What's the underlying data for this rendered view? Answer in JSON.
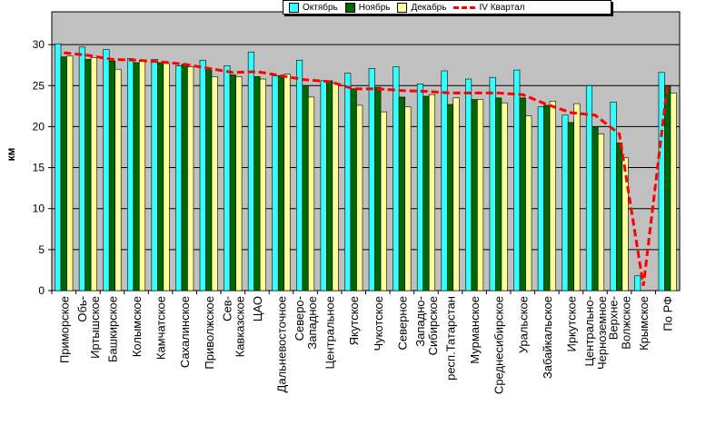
{
  "chart_data": {
    "type": "bar",
    "title": "",
    "xlabel": "",
    "ylabel": "км",
    "ylim": [
      0,
      34
    ],
    "yticks": [
      0,
      5,
      10,
      15,
      20,
      25,
      30
    ],
    "grid": true,
    "legend_position": "top-right",
    "categories": [
      "Приморское",
      "Обь-Иртышское",
      "Башкирское",
      "Колымское",
      "Камчатское",
      "Сахалинское",
      "Приволжское",
      "Сев-Кавказское",
      "ЦАО",
      "Дальневосточное",
      "Северо-Западное",
      "Центральное",
      "Якутское",
      "Чукотское",
      "Северное",
      "Западно-Сибирское",
      "респ.Татарстан",
      "Мурманское",
      "Среднесибирское",
      "Уральское",
      "Забайкальское",
      "Иркутское",
      "Центрально-Черноземное",
      "Верхне-Волжское",
      "Крымское",
      "По РФ"
    ],
    "series": [
      {
        "name": "Октябрь",
        "type": "bar",
        "color": "#33ffff",
        "values": [
          30.1,
          29.7,
          29.4,
          28.3,
          28.2,
          27.4,
          28.1,
          27.4,
          29.1,
          26.2,
          28.1,
          25.6,
          26.5,
          27.1,
          27.3,
          25.2,
          26.8,
          25.8,
          26.0,
          26.9,
          22.4,
          21.4,
          25.0,
          23.0,
          1.8,
          26.6
        ]
      },
      {
        "name": "Ноябрь",
        "type": "bar",
        "color": "#006600",
        "values": [
          28.5,
          28.2,
          28.0,
          27.8,
          27.8,
          27.6,
          27.0,
          26.3,
          26.1,
          26.2,
          25.0,
          25.6,
          24.6,
          24.8,
          23.6,
          23.7,
          22.7,
          23.3,
          23.5,
          23.5,
          22.6,
          20.5,
          20.0,
          18.0,
          0.0,
          25.0
        ]
      },
      {
        "name": "Декабрь",
        "type": "bar",
        "color": "#ffff99",
        "values": [
          28.6,
          28.4,
          27.0,
          28.1,
          27.7,
          27.3,
          26.1,
          26.1,
          25.8,
          26.4,
          23.6,
          25.3,
          22.6,
          21.8,
          22.4,
          23.9,
          23.5,
          23.3,
          22.9,
          21.3,
          23.1,
          22.8,
          19.1,
          16.2,
          0.0,
          24.1
        ]
      },
      {
        "name": "IV Квартал",
        "type": "line",
        "color": "#ff0000",
        "values": [
          29.0,
          28.7,
          28.2,
          28.1,
          27.9,
          27.6,
          27.1,
          26.6,
          26.7,
          26.2,
          25.7,
          25.5,
          24.6,
          24.6,
          24.4,
          24.3,
          24.1,
          24.1,
          24.1,
          23.9,
          22.7,
          21.7,
          21.4,
          19.1,
          0.6,
          25.2
        ]
      }
    ]
  }
}
